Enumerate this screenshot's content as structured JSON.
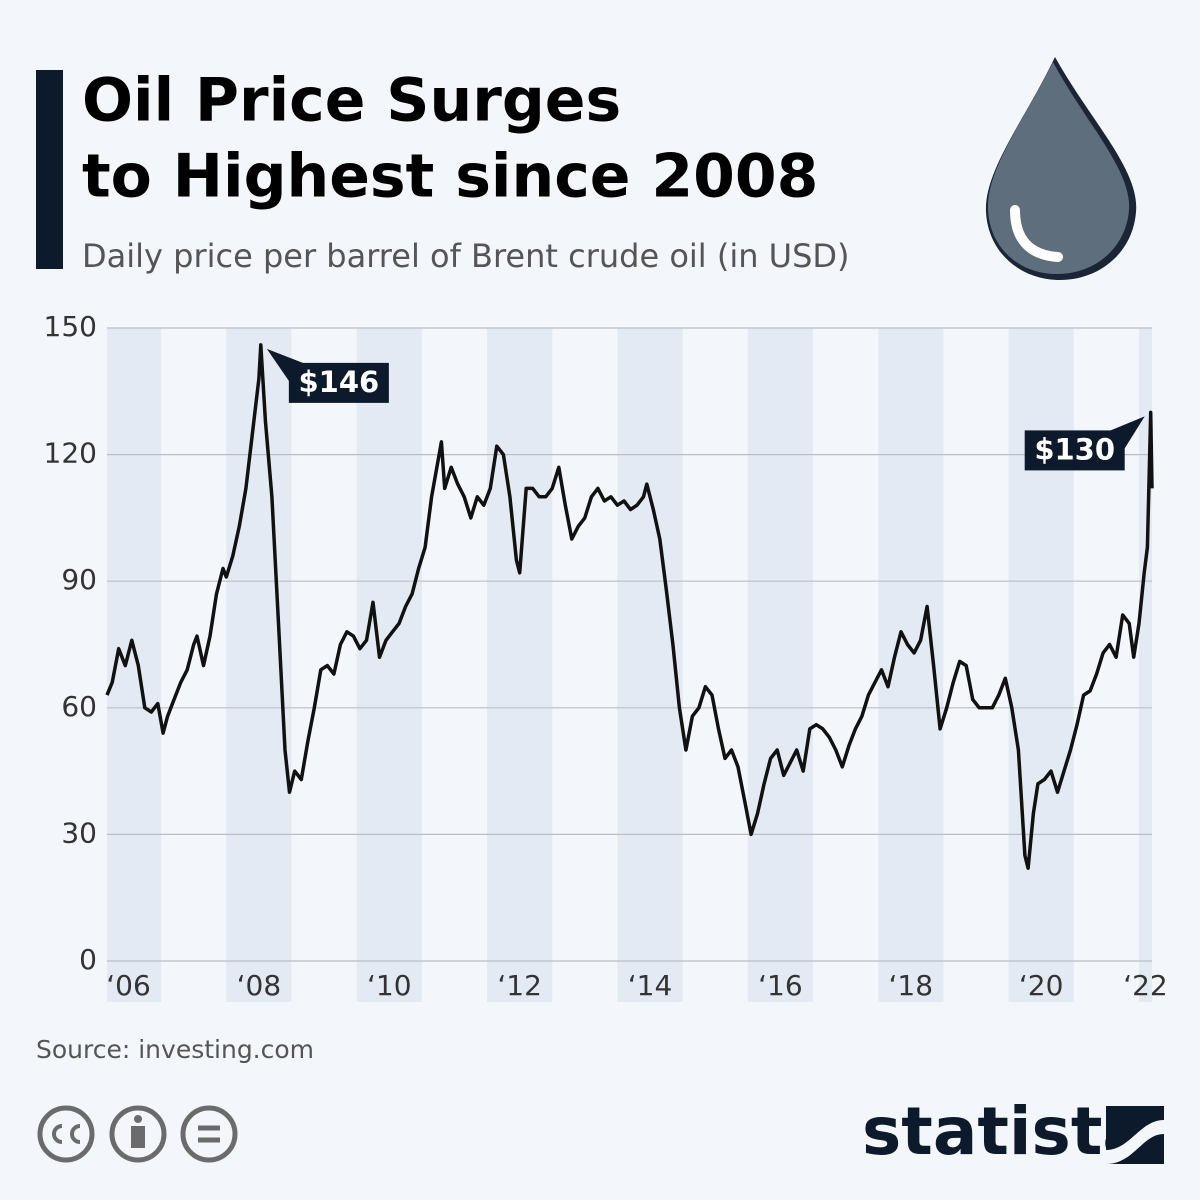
{
  "chart_data": {
    "type": "line",
    "title": [
      "Oil Price Surges",
      "to Highest since 2008"
    ],
    "subtitle": "Daily price per barrel of Brent crude oil (in USD)",
    "source": "Source: investing.com",
    "brand": "statista",
    "color": "#111111",
    "grid": true,
    "xlim": [
      2006.17,
      2022.2
    ],
    "ylim": [
      0,
      150
    ],
    "yticks": [
      0,
      30,
      60,
      90,
      120,
      150
    ],
    "xticks": [
      {
        "value": 2006.5,
        "label": "‘06"
      },
      {
        "value": 2008.5,
        "label": "‘08"
      },
      {
        "value": 2010.5,
        "label": "‘10"
      },
      {
        "value": 2012.5,
        "label": "‘12"
      },
      {
        "value": 2014.5,
        "label": "‘14"
      },
      {
        "value": 2016.5,
        "label": "‘16"
      },
      {
        "value": 2018.5,
        "label": "‘18"
      },
      {
        "value": 2020.5,
        "label": "‘20"
      },
      {
        "value": 2022.1,
        "label": "‘22"
      }
    ],
    "x": [
      2006.17,
      2006.25,
      2006.35,
      2006.45,
      2006.55,
      2006.65,
      2006.75,
      2006.85,
      2006.95,
      2007.03,
      2007.1,
      2007.2,
      2007.3,
      2007.4,
      2007.5,
      2007.55,
      2007.65,
      2007.75,
      2007.85,
      2007.95,
      2008.0,
      2008.1,
      2008.2,
      2008.3,
      2008.4,
      2008.5,
      2008.53,
      2008.6,
      2008.7,
      2008.8,
      2008.9,
      2008.97,
      2009.05,
      2009.15,
      2009.25,
      2009.35,
      2009.45,
      2009.55,
      2009.65,
      2009.75,
      2009.85,
      2009.95,
      2010.05,
      2010.15,
      2010.25,
      2010.35,
      2010.45,
      2010.55,
      2010.65,
      2010.75,
      2010.85,
      2010.95,
      2011.05,
      2011.15,
      2011.3,
      2011.35,
      2011.45,
      2011.55,
      2011.65,
      2011.75,
      2011.85,
      2011.95,
      2012.05,
      2012.15,
      2012.25,
      2012.35,
      2012.45,
      2012.5,
      2012.6,
      2012.7,
      2012.8,
      2012.9,
      2013.0,
      2013.1,
      2013.2,
      2013.3,
      2013.4,
      2013.5,
      2013.6,
      2013.7,
      2013.8,
      2013.9,
      2014.0,
      2014.1,
      2014.2,
      2014.3,
      2014.4,
      2014.45,
      2014.55,
      2014.65,
      2014.75,
      2014.85,
      2014.95,
      2015.05,
      2015.15,
      2015.25,
      2015.35,
      2015.45,
      2015.55,
      2015.65,
      2015.75,
      2015.85,
      2015.95,
      2016.05,
      2016.15,
      2016.25,
      2016.35,
      2016.45,
      2016.55,
      2016.65,
      2016.75,
      2016.85,
      2016.95,
      2017.05,
      2017.15,
      2017.25,
      2017.35,
      2017.45,
      2017.55,
      2017.65,
      2017.75,
      2017.85,
      2017.95,
      2018.05,
      2018.15,
      2018.25,
      2018.35,
      2018.45,
      2018.55,
      2018.65,
      2018.75,
      2018.85,
      2018.95,
      2019.05,
      2019.15,
      2019.25,
      2019.35,
      2019.45,
      2019.55,
      2019.65,
      2019.75,
      2019.85,
      2019.95,
      2020.05,
      2020.15,
      2020.25,
      2020.3,
      2020.38,
      2020.45,
      2020.55,
      2020.65,
      2020.75,
      2020.85,
      2020.95,
      2021.05,
      2021.15,
      2021.25,
      2021.35,
      2021.45,
      2021.55,
      2021.65,
      2021.75,
      2021.85,
      2021.92,
      2022.0,
      2022.08,
      2022.13,
      2022.18,
      2022.2
    ],
    "values": [
      63,
      66,
      74,
      70,
      76,
      70,
      60,
      59,
      61,
      54,
      58,
      62,
      66,
      69,
      75,
      77,
      70,
      77,
      87,
      93,
      91,
      96,
      103,
      112,
      125,
      138,
      146,
      128,
      110,
      80,
      50,
      40,
      45,
      43,
      52,
      60,
      69,
      70,
      68,
      75,
      78,
      77,
      74,
      76,
      85,
      72,
      76,
      78,
      80,
      84,
      87,
      93,
      98,
      110,
      123,
      112,
      117,
      113,
      110,
      105,
      110,
      108,
      112,
      122,
      120,
      110,
      95,
      92,
      112,
      112,
      110,
      110,
      112,
      117,
      108,
      100,
      103,
      105,
      110,
      112,
      109,
      110,
      108,
      109,
      107,
      108,
      110,
      113,
      107,
      100,
      88,
      75,
      60,
      50,
      58,
      60,
      65,
      63,
      55,
      48,
      50,
      46,
      38,
      30,
      35,
      42,
      48,
      50,
      44,
      47,
      50,
      45,
      55,
      56,
      55,
      53,
      50,
      46,
      51,
      55,
      58,
      63,
      66,
      69,
      65,
      72,
      78,
      75,
      73,
      76,
      84,
      70,
      55,
      60,
      66,
      71,
      70,
      62,
      60,
      60,
      60,
      63,
      67,
      60,
      50,
      25,
      22,
      35,
      42,
      43,
      45,
      40,
      45,
      50,
      56,
      63,
      64,
      68,
      73,
      75,
      72,
      82,
      80,
      72,
      80,
      92,
      98,
      130,
      112
    ],
    "annotations": [
      {
        "label": "$146",
        "x": 2008.53,
        "value": 146
      },
      {
        "label": "$130",
        "x": 2022.18,
        "value": 130
      }
    ]
  }
}
